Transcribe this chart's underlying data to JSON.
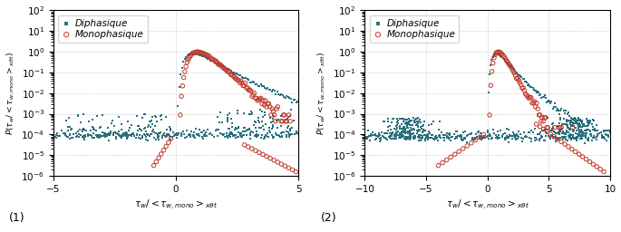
{
  "subplot1": {
    "xlim": [
      -5,
      5
    ],
    "xticks": [
      -5,
      0,
      5
    ],
    "xlabel": "$\\tau_w / < \\tau_{w,mono} >_{x\\theta t}$",
    "ylabel": "$P(\\tau_w / < \\tau_{w,mono} >_{x\\theta t})$",
    "label": "(1)"
  },
  "subplot2": {
    "xlim": [
      -10,
      10
    ],
    "xticks": [
      -10,
      -5,
      0,
      5,
      10
    ],
    "xlabel": "$\\tau_w / < \\tau_{w,mono} >_{x\\theta t}$",
    "ylabel": "$P(\\tau_w / < \\tau_{w,mono} >_{x\\theta t})$",
    "label": "(2)"
  },
  "ylim": [
    1e-06,
    100.0
  ],
  "color_diphasique": "#2A6F7F",
  "color_monophasique": "#C0392B",
  "background_color": "#ffffff",
  "grid_color": "#b0b0b0",
  "figsize": [
    6.85,
    2.56
  ],
  "dpi": 100
}
